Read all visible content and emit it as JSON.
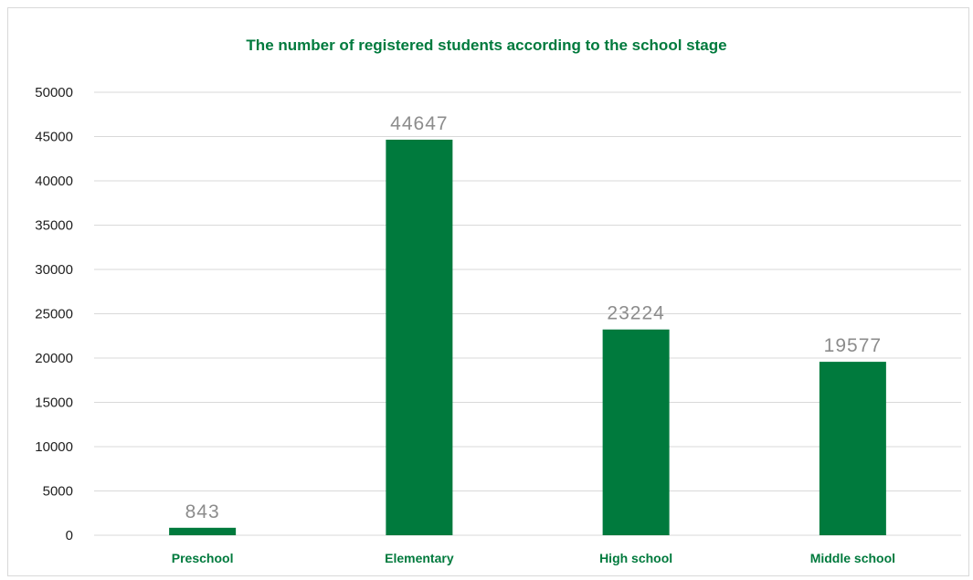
{
  "chart_data": {
    "type": "bar",
    "title": "The number of registered students according to the school stage",
    "categories": [
      "Preschool",
      "Elementary",
      "High school",
      "Middle school"
    ],
    "values": [
      843,
      44647,
      23224,
      19577
    ],
    "data_labels": [
      "843",
      "44647",
      "23224",
      "19577"
    ],
    "xlabel": "",
    "ylabel": "",
    "ylim": [
      0,
      50000
    ],
    "yticks": [
      "0",
      "5000",
      "10000",
      "15000",
      "20000",
      "25000",
      "30000",
      "35000",
      "40000",
      "45000",
      "50000"
    ],
    "grid": true,
    "legend": "none"
  },
  "colors": {
    "bar": "#007a3d",
    "title": "#007a3d",
    "category_label": "#007a3d",
    "data_label": "#8c8c8c",
    "gridline": "#d9d9d9",
    "tick_label": "#1f1f1f"
  }
}
